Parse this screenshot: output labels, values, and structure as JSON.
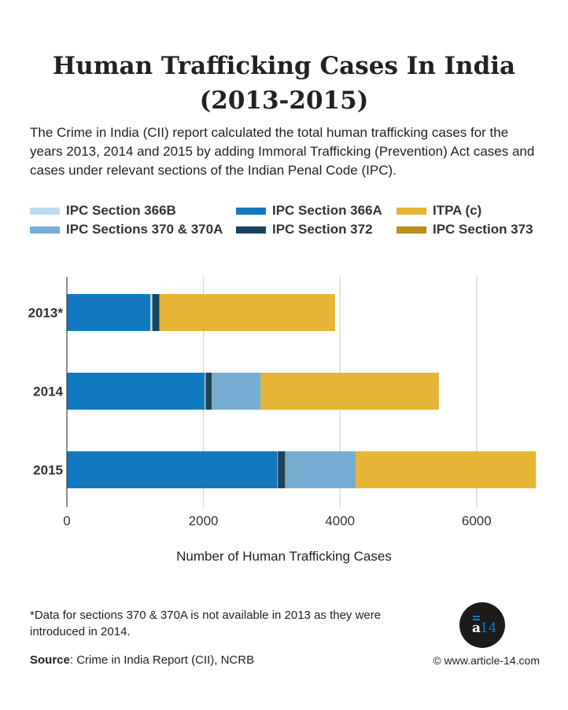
{
  "title_line1": "Human Trafficking Cases In India",
  "title_line2": "(2013-2015)",
  "description": "The Crime in India (CII) report calculated the total human trafficking cases for the years 2013, 2014 and 2015 by adding Immoral Trafficking (Prevention) Act cases and cases under relevant sections of the Indian Penal Code (IPC).",
  "chart_data": {
    "type": "bar",
    "orientation": "horizontal",
    "stacked": true,
    "categories": [
      "2013*",
      "2014",
      "2015"
    ],
    "series": [
      {
        "name": "IPC Section 366A",
        "color": "#1279bf",
        "values": [
          1224,
          2018,
          3084
        ]
      },
      {
        "name": "IPC Section 366B",
        "color": "#bcdcf0",
        "values": [
          27,
          13,
          6
        ]
      },
      {
        "name": "IPC Section 372",
        "color": "#1a4560",
        "values": [
          104,
          90,
          105
        ]
      },
      {
        "name": "IPC Section 373",
        "color": "#b88d1e",
        "values": [
          0,
          8,
          15
        ]
      },
      {
        "name": "IPC Sections 370 & 370A",
        "color": "#75add3",
        "values": [
          0,
          710,
          1020
        ]
      },
      {
        "name": "ITPA (c)",
        "color": "#e6b535",
        "values": [
          2572,
          2608,
          2640
        ]
      }
    ],
    "legend_order": [
      "IPC Section 366B",
      "IPC Section 366A",
      "ITPA (c)",
      "IPC Sections 370 & 370A",
      "IPC Section 372",
      "IPC Section 373"
    ],
    "xlabel": "Number of Human Trafficking Cases",
    "ylabel": "",
    "xlim": [
      0,
      6900
    ],
    "xticks": [
      0,
      2000,
      4000,
      6000
    ],
    "grid": "vertical",
    "legend_position": "top"
  },
  "footnote": "*Data for sections 370 & 370A is not available in 2013 as they were introduced in 2014.",
  "source_label": "Source",
  "source_text": ": Crime in India Report (CII), NCRB",
  "site": "© www.article-14.com",
  "logo_text": "a14"
}
